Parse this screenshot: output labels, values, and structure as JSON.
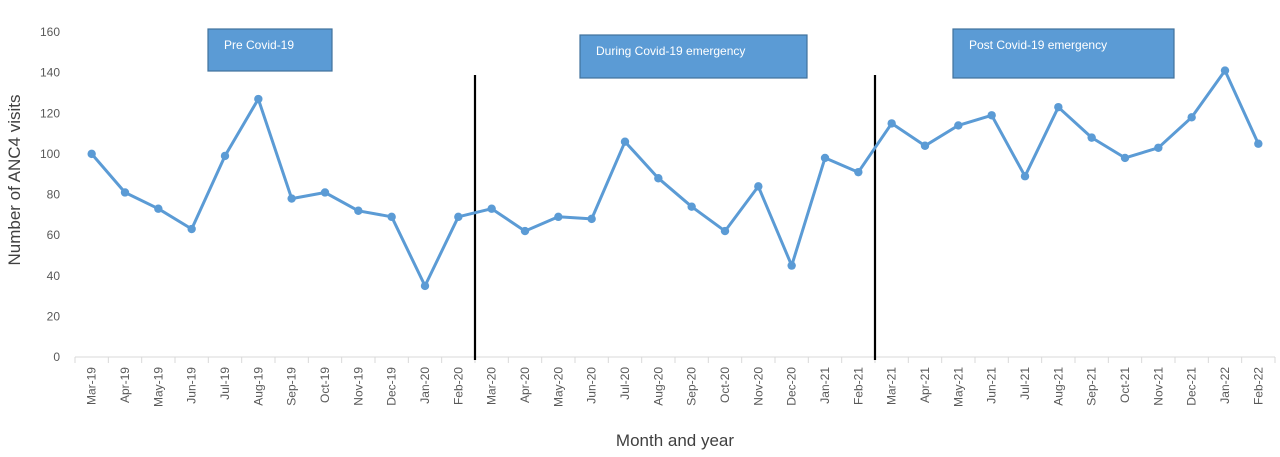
{
  "chart_data": {
    "type": "line",
    "title": "",
    "xlabel": "Month and year",
    "ylabel": "Number of ANC4 visits",
    "ylim": [
      0,
      160
    ],
    "yticks": [
      0,
      20,
      40,
      60,
      80,
      100,
      120,
      140,
      160
    ],
    "grid": false,
    "categories": [
      "Mar-19",
      "Apr-19",
      "May-19",
      "Jun-19",
      "Jul-19",
      "Aug-19",
      "Sep-19",
      "Oct-19",
      "Nov-19",
      "Dec-19",
      "Jan-20",
      "Feb-20",
      "Mar-20",
      "Apr-20",
      "May-20",
      "Jun-20",
      "Jul-20",
      "Aug-20",
      "Sep-20",
      "Oct-20",
      "Nov-20",
      "Dec-20",
      "Jan-21",
      "Feb-21",
      "Mar-21",
      "Apr-21",
      "May-21",
      "Jun-21",
      "Jul-21",
      "Aug-21",
      "Sep-21",
      "Oct-21",
      "Nov-21",
      "Dec-21",
      "Jan-22",
      "Feb-22"
    ],
    "series": [
      {
        "values": [
          100,
          81,
          73,
          63,
          99,
          127,
          78,
          81,
          72,
          69,
          35,
          69,
          73,
          62,
          69,
          68,
          106,
          88,
          74,
          62,
          84,
          45,
          98,
          91,
          115,
          104,
          114,
          119,
          89,
          123,
          108,
          98,
          103,
          118,
          141,
          105
        ],
        "color": "#5B9BD5"
      }
    ],
    "periods": [
      {
        "label": "Pre Covid-19"
      },
      {
        "label": "During Covid-19 emergency"
      },
      {
        "label": "Post Covid-19  emergency"
      }
    ],
    "dividers_after": [
      "Feb-20",
      "Feb-21"
    ],
    "colors": {
      "line": "#5B9BD5",
      "box_fill": "#5B9BD5",
      "box_border": "#41719C",
      "divider": "#000000"
    }
  }
}
